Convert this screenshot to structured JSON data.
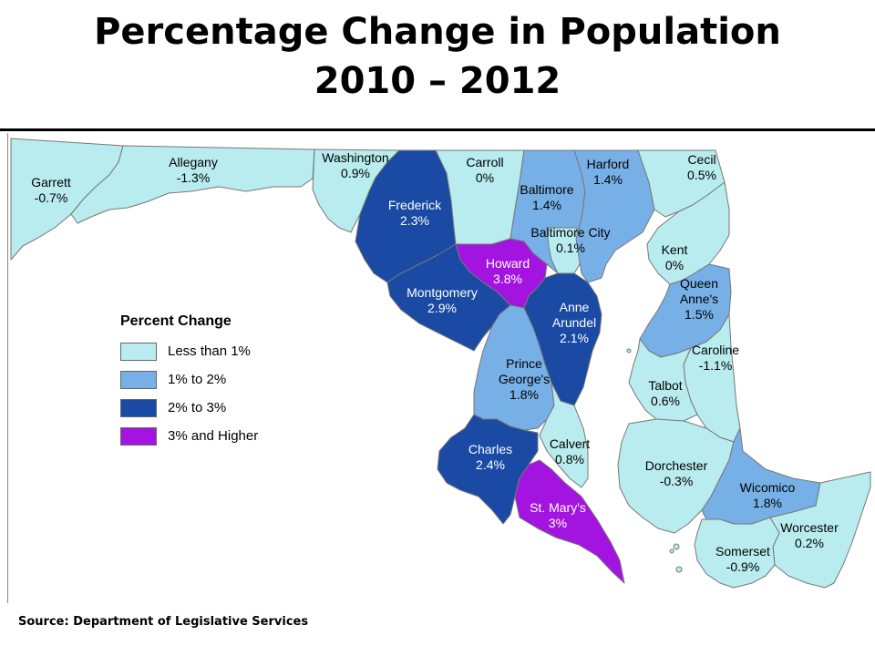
{
  "title": {
    "line1": "Percentage Change in Population",
    "line2": "2010 – 2012"
  },
  "source": "Source: Department of Legislative Services",
  "legend": {
    "title": "Percent Change",
    "items": [
      {
        "label": "Less than 1%",
        "color": "#b9ecee"
      },
      {
        "label": "1% to 2%",
        "color": "#77b0e6"
      },
      {
        "label": "2% to 3%",
        "color": "#1a4aa3"
      },
      {
        "label": "3% and Higher",
        "color": "#a414e0"
      }
    ]
  },
  "counties": [
    {
      "id": "garrett",
      "name": "Garrett",
      "change": "-0.7%",
      "category": 0
    },
    {
      "id": "allegany",
      "name": "Allegany",
      "change": "-1.3%",
      "category": 0
    },
    {
      "id": "washington",
      "name": "Washington",
      "change": "0.9%",
      "category": 0
    },
    {
      "id": "frederick",
      "name": "Frederick",
      "change": "2.3%",
      "category": 2
    },
    {
      "id": "carroll",
      "name": "Carroll",
      "change": "0%",
      "category": 0
    },
    {
      "id": "baltimore",
      "name": "Baltimore",
      "change": "1.4%",
      "category": 1
    },
    {
      "id": "baltimore-city",
      "name": "Baltimore City",
      "change": "0.1%",
      "category": 0
    },
    {
      "id": "harford",
      "name": "Harford",
      "change": "1.4%",
      "category": 1
    },
    {
      "id": "cecil",
      "name": "Cecil",
      "change": "0.5%",
      "category": 0
    },
    {
      "id": "howard",
      "name": "Howard",
      "change": "3.8%",
      "category": 3
    },
    {
      "id": "montgomery",
      "name": "Montgomery",
      "change": "2.9%",
      "category": 2
    },
    {
      "id": "anne-arundel",
      "name": "Anne Arundel",
      "change": "2.1%",
      "category": 2
    },
    {
      "id": "prince-georges",
      "name": "Prince George's",
      "change": "1.8%",
      "category": 1
    },
    {
      "id": "charles",
      "name": "Charles",
      "change": "2.4%",
      "category": 2
    },
    {
      "id": "calvert",
      "name": "Calvert",
      "change": "0.8%",
      "category": 0
    },
    {
      "id": "st-marys",
      "name": "St. Mary's",
      "change": "3%",
      "category": 3
    },
    {
      "id": "kent",
      "name": "Kent",
      "change": "0%",
      "category": 0
    },
    {
      "id": "queen-annes",
      "name": "Queen Anne's",
      "change": "1.5%",
      "category": 1
    },
    {
      "id": "caroline",
      "name": "Caroline",
      "change": "-1.1%",
      "category": 0
    },
    {
      "id": "talbot",
      "name": "Talbot",
      "change": "0.6%",
      "category": 0
    },
    {
      "id": "dorchester",
      "name": "Dorchester",
      "change": "-0.3%",
      "category": 0
    },
    {
      "id": "wicomico",
      "name": "Wicomico",
      "change": "1.8%",
      "category": 1
    },
    {
      "id": "worcester",
      "name": "Worcester",
      "change": "0.2%",
      "category": 0
    },
    {
      "id": "somerset",
      "name": "Somerset",
      "change": "-0.9%",
      "category": 0
    }
  ]
}
